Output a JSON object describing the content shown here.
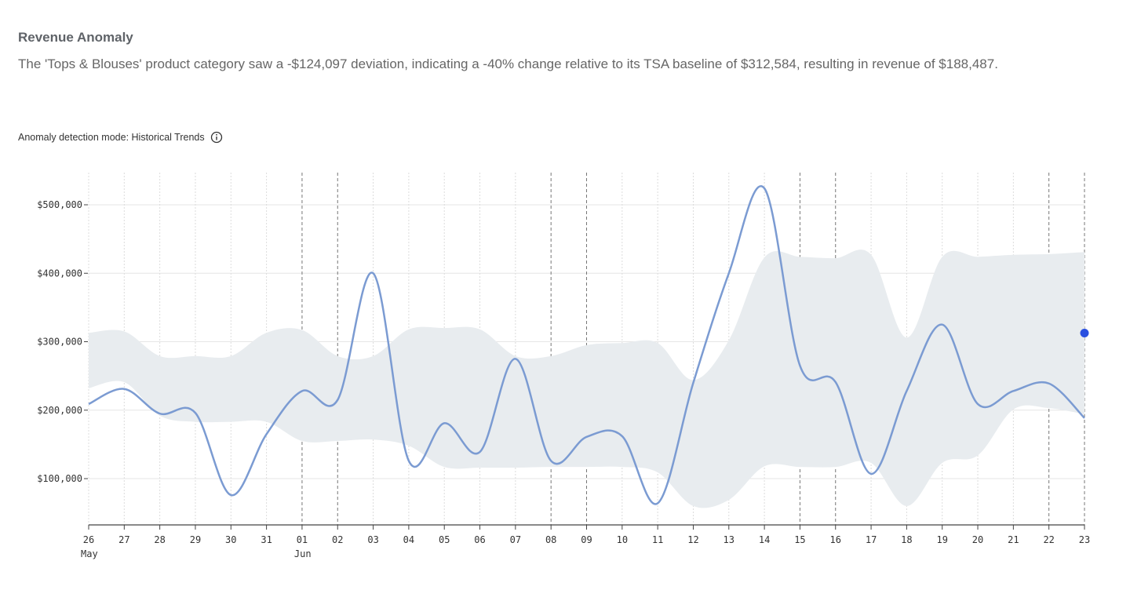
{
  "header": {
    "title": "Revenue Anomaly",
    "description": "The 'Tops & Blouses' product category saw a -$124,097 deviation, indicating a -40% change relative to its TSA baseline of $312,584, resulting in revenue of $188,487.",
    "mode_label": "Anomaly detection mode: Historical Trends"
  },
  "chart_data": {
    "type": "line",
    "categories": [
      "26",
      "27",
      "28",
      "29",
      "30",
      "31",
      "01",
      "02",
      "03",
      "04",
      "05",
      "06",
      "07",
      "08",
      "09",
      "10",
      "11",
      "12",
      "13",
      "14",
      "15",
      "16",
      "17",
      "18",
      "19",
      "20",
      "21",
      "22",
      "23"
    ],
    "month_labels": [
      "May",
      null,
      null,
      null,
      null,
      null,
      "Jun",
      null,
      null,
      null,
      null,
      null,
      null,
      null,
      null,
      null,
      null,
      null,
      null,
      null,
      null,
      null,
      null,
      null,
      null,
      null,
      null,
      null,
      null
    ],
    "weekend": [
      false,
      false,
      false,
      false,
      false,
      false,
      true,
      true,
      false,
      false,
      false,
      false,
      false,
      true,
      true,
      false,
      false,
      false,
      false,
      false,
      true,
      true,
      false,
      false,
      false,
      false,
      false,
      true,
      true
    ],
    "values": [
      209000,
      231000,
      195000,
      196000,
      76000,
      165000,
      228000,
      215000,
      400000,
      126000,
      181000,
      139000,
      275000,
      126000,
      161000,
      162000,
      64000,
      240000,
      400000,
      524000,
      265000,
      241000,
      107000,
      228000,
      325000,
      209000,
      228000,
      239000,
      188487
    ],
    "color": "#7b9bd2",
    "band": {
      "color": "#e8ecef",
      "upper": [
        313000,
        315000,
        279000,
        279000,
        279000,
        313000,
        317000,
        279000,
        279000,
        318000,
        320000,
        318000,
        279000,
        279000,
        295000,
        298000,
        298000,
        244000,
        302000,
        423000,
        424000,
        422000,
        427000,
        306000,
        424000,
        424000,
        427000,
        428000,
        431000
      ],
      "lower": [
        232000,
        241000,
        192000,
        183000,
        183000,
        183000,
        155000,
        155000,
        157000,
        148000,
        117000,
        116000,
        116000,
        117000,
        117000,
        117000,
        109000,
        60000,
        69000,
        118000,
        117000,
        117000,
        123000,
        60000,
        123000,
        134000,
        201000,
        203000,
        194000
      ]
    },
    "anomaly_values": [
      null,
      null,
      null,
      null,
      null,
      null,
      null,
      null,
      null,
      null,
      null,
      null,
      null,
      null,
      null,
      null,
      null,
      null,
      null,
      null,
      null,
      null,
      null,
      null,
      null,
      null,
      null,
      null,
      312584
    ],
    "anomaly_color": "#2a50e0",
    "ylim": [
      32400,
      547000
    ],
    "yticks": [
      {
        "value": 100000,
        "label": "$100,000"
      },
      {
        "value": 200000,
        "label": "$200,000"
      },
      {
        "value": 300000,
        "label": "$300,000"
      },
      {
        "value": 400000,
        "label": "$400,000"
      },
      {
        "value": 500000,
        "label": "$500,000"
      }
    ],
    "grid": true
  }
}
